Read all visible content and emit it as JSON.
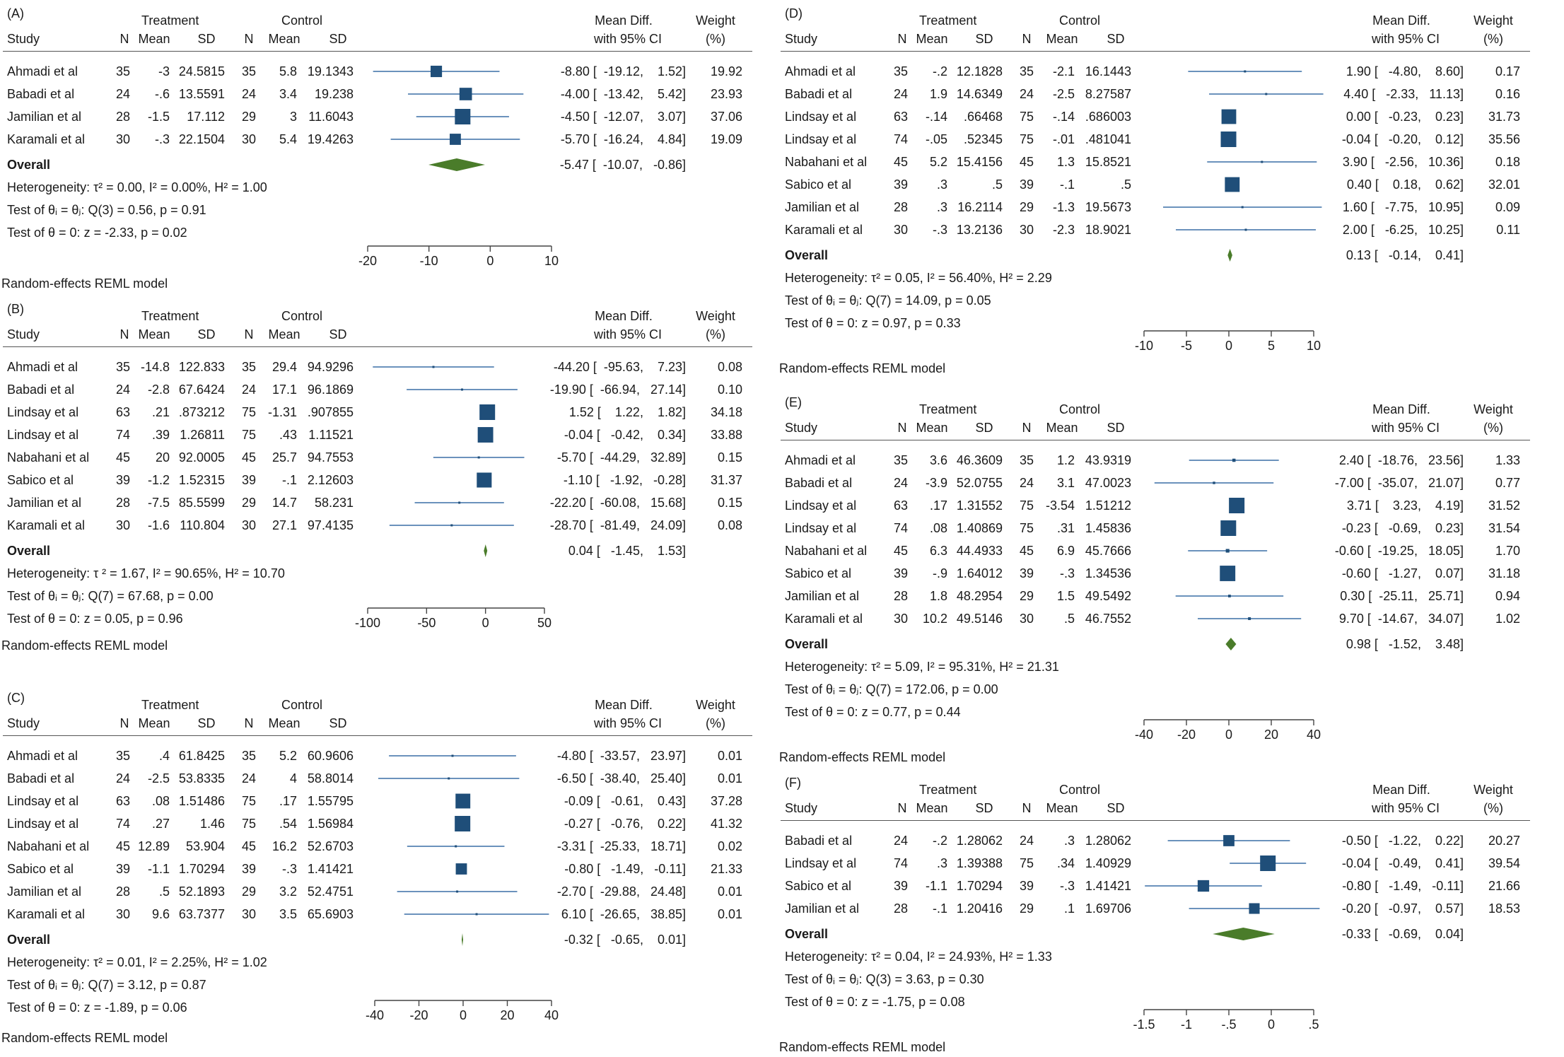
{
  "colors": {
    "marker": "#1f4e79",
    "ci_line": "#3a6ea5",
    "diamond": "#4a7c2a",
    "rule": "#555555",
    "text": "#1a1a1a"
  },
  "columns": {
    "treatment": "Treatment",
    "control": "Control",
    "study": "Study",
    "n": "N",
    "mean": "Mean",
    "sd": "SD",
    "md1": "Mean Diff.",
    "md2": "with 95% CI",
    "w1": "Weight",
    "w2": "(%)"
  },
  "chart_data": [
    {
      "type": "forest",
      "label": "(A)",
      "model": "Random-effects REML model",
      "xlim": [
        -20,
        10
      ],
      "xticks": [
        -20,
        -10,
        0,
        10
      ],
      "studies": [
        {
          "study": "Ahmadi et al",
          "tn": "35",
          "tmean": "-3",
          "tsd": "24.5815",
          "cn": "35",
          "cmean": "5.8",
          "csd": "19.1343",
          "md": -8.8,
          "lo": -19.12,
          "hi": 1.52,
          "ci": "-8.80 [  -19.12,    1.52]",
          "weight": 19.92,
          "w": "19.92"
        },
        {
          "study": "Babadi et al",
          "tn": "24",
          "tmean": "-.6",
          "tsd": "13.5591",
          "cn": "24",
          "cmean": "3.4",
          "csd": "19.238",
          "md": -4.0,
          "lo": -13.42,
          "hi": 5.42,
          "ci": "-4.00 [  -13.42,    5.42]",
          "weight": 23.93,
          "w": "23.93"
        },
        {
          "study": "Jamilian et al",
          "tn": "28",
          "tmean": "-1.5",
          "tsd": "17.112",
          "cn": "29",
          "cmean": "3",
          "csd": "11.6043",
          "md": -4.5,
          "lo": -12.07,
          "hi": 3.07,
          "ci": "-4.50 [  -12.07,    3.07]",
          "weight": 37.06,
          "w": "37.06"
        },
        {
          "study": "Karamali et al",
          "tn": "30",
          "tmean": "-.3",
          "tsd": "22.1504",
          "cn": "30",
          "cmean": "5.4",
          "csd": "19.4263",
          "md": -5.7,
          "lo": -16.24,
          "hi": 4.84,
          "ci": "-5.70 [  -16.24,    4.84]",
          "weight": 19.09,
          "w": "19.09"
        }
      ],
      "overall": {
        "label": "Overall",
        "md": -5.47,
        "lo": -10.07,
        "hi": -0.86,
        "ci": "-5.47 [  -10.07,   -0.86]"
      },
      "stats": [
        "Heterogeneity: τ² = 0.00, I² = 0.00%, H² = 1.00",
        "Test of θᵢ = θⱼ: Q(3) = 0.56, p = 0.91",
        "Test of θ = 0: z = -2.33, p = 0.02"
      ]
    },
    {
      "type": "forest",
      "label": "(B)",
      "model": "Random-effects REML model",
      "xlim": [
        -100,
        50
      ],
      "xticks": [
        -100,
        -50,
        0,
        50
      ],
      "studies": [
        {
          "study": "Ahmadi et al",
          "tn": "35",
          "tmean": "-14.8",
          "tsd": "122.833",
          "cn": "35",
          "cmean": "29.4",
          "csd": "94.9296",
          "md": -44.2,
          "lo": -95.63,
          "hi": 7.23,
          "ci": "-44.20 [  -95.63,    7.23]",
          "weight": 0.08,
          "w": "0.08"
        },
        {
          "study": "Babadi et al",
          "tn": "24",
          "tmean": "-2.8",
          "tsd": "67.6424",
          "cn": "24",
          "cmean": "17.1",
          "csd": "96.1869",
          "md": -19.9,
          "lo": -66.94,
          "hi": 27.14,
          "ci": "-19.90 [  -66.94,   27.14]",
          "weight": 0.1,
          "w": "0.10"
        },
        {
          "study": "Lindsay et al",
          "tn": "63",
          "tmean": ".21",
          "tsd": ".873212",
          "cn": "75",
          "cmean": "-1.31",
          "csd": ".907855",
          "md": 1.52,
          "lo": 1.22,
          "hi": 1.82,
          "ci": "1.52 [    1.22,    1.82]",
          "weight": 34.18,
          "w": "34.18"
        },
        {
          "study": "Lindsay et al",
          "tn": "74",
          "tmean": ".39",
          "tsd": "1.26811",
          "cn": "75",
          "cmean": ".43",
          "csd": "1.11521",
          "md": -0.04,
          "lo": -0.42,
          "hi": 0.34,
          "ci": "-0.04 [   -0.42,    0.34]",
          "weight": 33.88,
          "w": "33.88"
        },
        {
          "study": "Nabahani et al",
          "tn": "45",
          "tmean": "20",
          "tsd": "92.0005",
          "cn": "45",
          "cmean": "25.7",
          "csd": "94.7553",
          "md": -5.7,
          "lo": -44.29,
          "hi": 32.89,
          "ci": "-5.70 [  -44.29,   32.89]",
          "weight": 0.15,
          "w": "0.15"
        },
        {
          "study": "Sabico et al",
          "tn": "39",
          "tmean": "-1.2",
          "tsd": "1.52315",
          "cn": "39",
          "cmean": "-.1",
          "csd": "2.12603",
          "md": -1.1,
          "lo": -1.92,
          "hi": -0.28,
          "ci": "-1.10 [   -1.92,   -0.28]",
          "weight": 31.37,
          "w": "31.37"
        },
        {
          "study": "Jamilian et al",
          "tn": "28",
          "tmean": "-7.5",
          "tsd": "85.5599",
          "cn": "29",
          "cmean": "14.7",
          "csd": "58.231",
          "md": -22.2,
          "lo": -60.08,
          "hi": 15.68,
          "ci": "-22.20 [  -60.08,   15.68]",
          "weight": 0.15,
          "w": "0.15"
        },
        {
          "study": "Karamali et al",
          "tn": "30",
          "tmean": "-1.6",
          "tsd": "110.804",
          "cn": "30",
          "cmean": "27.1",
          "csd": "97.4135",
          "md": -28.7,
          "lo": -81.49,
          "hi": 24.09,
          "ci": "-28.70 [  -81.49,   24.09]",
          "weight": 0.08,
          "w": "0.08"
        }
      ],
      "overall": {
        "label": "Overall",
        "md": 0.04,
        "lo": -1.45,
        "hi": 1.53,
        "ci": "0.04 [   -1.45,    1.53]"
      },
      "stats": [
        "Heterogeneity: τ ² = 1.67, I² = 90.65%, H² = 10.70",
        "Test of θᵢ = θⱼ: Q(7) = 67.68, p = 0.00",
        "Test of θ = 0: z = 0.05, p = 0.96"
      ]
    },
    {
      "type": "forest",
      "label": "(C)",
      "model": "Random-effects REML model",
      "xlim": [
        -40,
        40
      ],
      "xticks": [
        -40,
        -20,
        0,
        20,
        40
      ],
      "studies": [
        {
          "study": "Ahmadi et al",
          "tn": "35",
          "tmean": ".4",
          "tsd": "61.8425",
          "cn": "35",
          "cmean": "5.2",
          "csd": "60.9606",
          "md": -4.8,
          "lo": -33.57,
          "hi": 23.97,
          "ci": "-4.80 [  -33.57,   23.97]",
          "weight": 0.01,
          "w": "0.01"
        },
        {
          "study": "Babadi et al",
          "tn": "24",
          "tmean": "-2.5",
          "tsd": "53.8335",
          "cn": "24",
          "cmean": "4",
          "csd": "58.8014",
          "md": -6.5,
          "lo": -38.4,
          "hi": 25.4,
          "ci": "-6.50 [  -38.40,   25.40]",
          "weight": 0.01,
          "w": "0.01"
        },
        {
          "study": "Lindsay et al",
          "tn": "63",
          "tmean": ".08",
          "tsd": "1.51486",
          "cn": "75",
          "cmean": ".17",
          "csd": "1.55795",
          "md": -0.09,
          "lo": -0.61,
          "hi": 0.43,
          "ci": "-0.09 [   -0.61,    0.43]",
          "weight": 37.28,
          "w": "37.28"
        },
        {
          "study": "Lindsay et al",
          "tn": "74",
          "tmean": ".27",
          "tsd": "1.46",
          "cn": "75",
          "cmean": ".54",
          "csd": "1.56984",
          "md": -0.27,
          "lo": -0.76,
          "hi": 0.22,
          "ci": "-0.27 [   -0.76,    0.22]",
          "weight": 41.32,
          "w": "41.32"
        },
        {
          "study": "Nabahani et al",
          "tn": "45",
          "tmean": "12.89",
          "tsd": "53.904",
          "cn": "45",
          "cmean": "16.2",
          "csd": "52.6703",
          "md": -3.31,
          "lo": -25.33,
          "hi": 18.71,
          "ci": "-3.31 [  -25.33,   18.71]",
          "weight": 0.02,
          "w": "0.02"
        },
        {
          "study": "Sabico et al",
          "tn": "39",
          "tmean": "-1.1",
          "tsd": "1.70294",
          "cn": "39",
          "cmean": "-.3",
          "csd": "1.41421",
          "md": -0.8,
          "lo": -1.49,
          "hi": -0.11,
          "ci": "-0.80 [   -1.49,   -0.11]",
          "weight": 21.33,
          "w": "21.33"
        },
        {
          "study": "Jamilian et al",
          "tn": "28",
          "tmean": ".5",
          "tsd": "52.1893",
          "cn": "29",
          "cmean": "3.2",
          "csd": "52.4751",
          "md": -2.7,
          "lo": -29.88,
          "hi": 24.48,
          "ci": "-2.70 [  -29.88,   24.48]",
          "weight": 0.01,
          "w": "0.01"
        },
        {
          "study": "Karamali et al",
          "tn": "30",
          "tmean": "9.6",
          "tsd": "63.7377",
          "cn": "30",
          "cmean": "3.5",
          "csd": "65.6903",
          "md": 6.1,
          "lo": -26.65,
          "hi": 38.85,
          "ci": "6.10 [  -26.65,   38.85]",
          "weight": 0.01,
          "w": "0.01"
        }
      ],
      "overall": {
        "label": "Overall",
        "md": -0.32,
        "lo": -0.65,
        "hi": 0.01,
        "ci": "-0.32 [   -0.65,    0.01]"
      },
      "stats": [
        "Heterogeneity: τ² = 0.01, I² = 2.25%, H² = 1.02",
        "Test of θᵢ = θⱼ: Q(7) = 3.12, p = 0.87",
        "Test of θ = 0: z = -1.89, p = 0.06"
      ]
    },
    {
      "type": "forest",
      "label": "(D)",
      "model": "Random-effects REML model",
      "xlim": [
        -10,
        10
      ],
      "xticks": [
        -10,
        -5,
        0,
        5,
        10
      ],
      "studies": [
        {
          "study": "Ahmadi et al",
          "tn": "35",
          "tmean": "-.2",
          "tsd": "12.1828",
          "cn": "35",
          "cmean": "-2.1",
          "csd": "16.1443",
          "md": 1.9,
          "lo": -4.8,
          "hi": 8.6,
          "ci": "1.90 [   -4.80,    8.60]",
          "weight": 0.17,
          "w": "0.17"
        },
        {
          "study": "Babadi et al",
          "tn": "24",
          "tmean": "1.9",
          "tsd": "14.6349",
          "cn": "24",
          "cmean": "-2.5",
          "csd": "8.27587",
          "md": 4.4,
          "lo": -2.33,
          "hi": 11.13,
          "ci": "4.40 [   -2.33,   11.13]",
          "weight": 0.16,
          "w": "0.16"
        },
        {
          "study": "Lindsay et al",
          "tn": "63",
          "tmean": "-.14",
          "tsd": ".66468",
          "cn": "75",
          "cmean": "-.14",
          "csd": ".686003",
          "md": 0.0,
          "lo": -0.23,
          "hi": 0.23,
          "ci": "0.00 [   -0.23,    0.23]",
          "weight": 31.73,
          "w": "31.73"
        },
        {
          "study": "Lindsay et al",
          "tn": "74",
          "tmean": "-.05",
          "tsd": ".52345",
          "cn": "75",
          "cmean": "-.01",
          "csd": ".481041",
          "md": -0.04,
          "lo": -0.2,
          "hi": 0.12,
          "ci": "-0.04 [   -0.20,    0.12]",
          "weight": 35.56,
          "w": "35.56"
        },
        {
          "study": "Nabahani et al",
          "tn": "45",
          "tmean": "5.2",
          "tsd": "15.4156",
          "cn": "45",
          "cmean": "1.3",
          "csd": "15.8521",
          "md": 3.9,
          "lo": -2.56,
          "hi": 10.36,
          "ci": "3.90 [   -2.56,   10.36]",
          "weight": 0.18,
          "w": "0.18"
        },
        {
          "study": "Sabico et al",
          "tn": "39",
          "tmean": ".3",
          "tsd": ".5",
          "cn": "39",
          "cmean": "-.1",
          "csd": ".5",
          "md": 0.4,
          "lo": 0.18,
          "hi": 0.62,
          "ci": "0.40 [    0.18,    0.62]",
          "weight": 32.01,
          "w": "32.01"
        },
        {
          "study": "Jamilian et al",
          "tn": "28",
          "tmean": ".3",
          "tsd": "16.2114",
          "cn": "29",
          "cmean": "-1.3",
          "csd": "19.5673",
          "md": 1.6,
          "lo": -7.75,
          "hi": 10.95,
          "ci": "1.60 [   -7.75,   10.95]",
          "weight": 0.09,
          "w": "0.09"
        },
        {
          "study": "Karamali et al",
          "tn": "30",
          "tmean": "-.3",
          "tsd": "13.2136",
          "cn": "30",
          "cmean": "-2.3",
          "csd": "18.9021",
          "md": 2.0,
          "lo": -6.25,
          "hi": 10.25,
          "ci": "2.00 [   -6.25,   10.25]",
          "weight": 0.11,
          "w": "0.11"
        }
      ],
      "overall": {
        "label": "Overall",
        "md": 0.13,
        "lo": -0.14,
        "hi": 0.41,
        "ci": "0.13 [   -0.14,    0.41]"
      },
      "stats": [
        "Heterogeneity: τ² = 0.05, I² = 56.40%, H² = 2.29",
        "Test of θᵢ = θⱼ: Q(7) = 14.09, p = 0.05",
        "Test of θ = 0: z = 0.97, p = 0.33"
      ]
    },
    {
      "type": "forest",
      "label": "(E)",
      "model": "Random-effects REML model",
      "xlim": [
        -40,
        40
      ],
      "xticks": [
        -40,
        -20,
        0,
        20,
        40
      ],
      "studies": [
        {
          "study": "Ahmadi et al",
          "tn": "35",
          "tmean": "3.6",
          "tsd": "46.3609",
          "cn": "35",
          "cmean": "1.2",
          "csd": "43.9319",
          "md": 2.4,
          "lo": -18.76,
          "hi": 23.56,
          "ci": "2.40 [  -18.76,   23.56]",
          "weight": 1.33,
          "w": "1.33"
        },
        {
          "study": "Babadi et al",
          "tn": "24",
          "tmean": "-3.9",
          "tsd": "52.0755",
          "cn": "24",
          "cmean": "3.1",
          "csd": "47.0023",
          "md": -7.0,
          "lo": -35.07,
          "hi": 21.07,
          "ci": "-7.00 [  -35.07,   21.07]",
          "weight": 0.77,
          "w": "0.77"
        },
        {
          "study": "Lindsay et al",
          "tn": "63",
          "tmean": ".17",
          "tsd": "1.31552",
          "cn": "75",
          "cmean": "-3.54",
          "csd": "1.51212",
          "md": 3.71,
          "lo": 3.23,
          "hi": 4.19,
          "ci": "3.71 [    3.23,    4.19]",
          "weight": 31.52,
          "w": "31.52"
        },
        {
          "study": "Lindsay et al",
          "tn": "74",
          "tmean": ".08",
          "tsd": "1.40869",
          "cn": "75",
          "cmean": ".31",
          "csd": "1.45836",
          "md": -0.23,
          "lo": -0.69,
          "hi": 0.23,
          "ci": "-0.23 [   -0.69,    0.23]",
          "weight": 31.54,
          "w": "31.54"
        },
        {
          "study": "Nabahani et al",
          "tn": "45",
          "tmean": "6.3",
          "tsd": "44.4933",
          "cn": "45",
          "cmean": "6.9",
          "csd": "45.7666",
          "md": -0.6,
          "lo": -19.25,
          "hi": 18.05,
          "ci": "-0.60 [  -19.25,   18.05]",
          "weight": 1.7,
          "w": "1.70"
        },
        {
          "study": "Sabico et al",
          "tn": "39",
          "tmean": "-.9",
          "tsd": "1.64012",
          "cn": "39",
          "cmean": "-.3",
          "csd": "1.34536",
          "md": -0.6,
          "lo": -1.27,
          "hi": 0.07,
          "ci": "-0.60 [   -1.27,    0.07]",
          "weight": 31.18,
          "w": "31.18"
        },
        {
          "study": "Jamilian et al",
          "tn": "28",
          "tmean": "1.8",
          "tsd": "48.2954",
          "cn": "29",
          "cmean": "1.5",
          "csd": "49.5492",
          "md": 0.3,
          "lo": -25.11,
          "hi": 25.71,
          "ci": "0.30 [  -25.11,   25.71]",
          "weight": 0.94,
          "w": "0.94"
        },
        {
          "study": "Karamali et al",
          "tn": "30",
          "tmean": "10.2",
          "tsd": "49.5146",
          "cn": "30",
          "cmean": ".5",
          "csd": "46.7552",
          "md": 9.7,
          "lo": -14.67,
          "hi": 34.07,
          "ci": "9.70 [  -14.67,   34.07]",
          "weight": 1.02,
          "w": "1.02"
        }
      ],
      "overall": {
        "label": "Overall",
        "md": 0.98,
        "lo": -1.52,
        "hi": 3.48,
        "ci": "0.98 [   -1.52,    3.48]"
      },
      "stats": [
        "Heterogeneity: τ² = 5.09, I² = 95.31%, H² = 21.31",
        "Test of θᵢ = θⱼ: Q(7) = 172.06, p = 0.00",
        "Test of θ = 0: z = 0.77, p = 0.44"
      ]
    },
    {
      "type": "forest",
      "label": "(F)",
      "model": "Random-effects REML model",
      "xlim": [
        -1.5,
        0.5
      ],
      "xticks": [
        -1.5,
        -1,
        -0.5,
        0,
        0.5
      ],
      "xticklabels": [
        "-1.5",
        "-1",
        "-.5",
        "0",
        ".5"
      ],
      "studies": [
        {
          "study": "Babadi et al",
          "tn": "24",
          "tmean": "-.2",
          "tsd": "1.28062",
          "cn": "24",
          "cmean": ".3",
          "csd": "1.28062",
          "md": -0.5,
          "lo": -1.22,
          "hi": 0.22,
          "ci": "-0.50 [   -1.22,    0.22]",
          "weight": 20.27,
          "w": "20.27"
        },
        {
          "study": "Lindsay et al",
          "tn": "74",
          "tmean": ".3",
          "tsd": "1.39388",
          "cn": "75",
          "cmean": ".34",
          "csd": "1.40929",
          "md": -0.04,
          "lo": -0.49,
          "hi": 0.41,
          "ci": "-0.04 [   -0.49,    0.41]",
          "weight": 39.54,
          "w": "39.54"
        },
        {
          "study": "Sabico et al",
          "tn": "39",
          "tmean": "-1.1",
          "tsd": "1.70294",
          "cn": "39",
          "cmean": "-.3",
          "csd": "1.41421",
          "md": -0.8,
          "lo": -1.49,
          "hi": -0.11,
          "ci": "-0.80 [   -1.49,   -0.11]",
          "weight": 21.66,
          "w": "21.66"
        },
        {
          "study": "Jamilian et al",
          "tn": "28",
          "tmean": "-.1",
          "tsd": "1.20416",
          "cn": "29",
          "cmean": ".1",
          "csd": "1.69706",
          "md": -0.2,
          "lo": -0.97,
          "hi": 0.57,
          "ci": "-0.20 [   -0.97,    0.57]",
          "weight": 18.53,
          "w": "18.53"
        }
      ],
      "overall": {
        "label": "Overall",
        "md": -0.33,
        "lo": -0.69,
        "hi": 0.04,
        "ci": "-0.33 [   -0.69,    0.04]"
      },
      "stats": [
        "Heterogeneity: τ² = 0.04, I² = 24.93%, H² = 1.33",
        "Test of θᵢ = θⱼ: Q(3) = 3.63, p = 0.30",
        "Test of θ = 0: z = -1.75, p = 0.08"
      ]
    }
  ]
}
